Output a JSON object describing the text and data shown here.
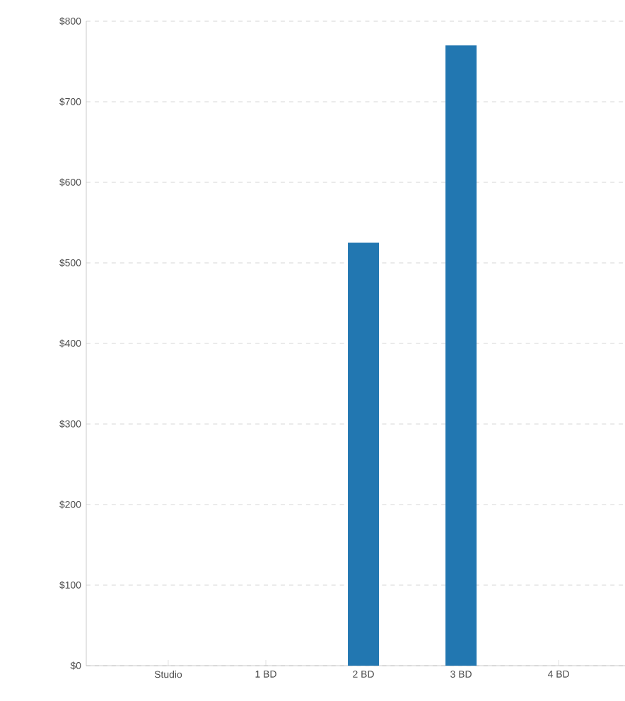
{
  "chart_data": {
    "type": "bar",
    "categories": [
      "Studio",
      "1 BD",
      "2 BD",
      "3 BD",
      "4 BD"
    ],
    "values": [
      0,
      0,
      525,
      770,
      0
    ],
    "color": "#2277b1",
    "ylim": [
      0,
      800
    ],
    "yticks": [
      {
        "value": 0,
        "label": "$0"
      },
      {
        "value": 100,
        "label": "$100"
      },
      {
        "value": 200,
        "label": "$200"
      },
      {
        "value": 300,
        "label": "$300"
      },
      {
        "value": 400,
        "label": "$400"
      },
      {
        "value": 500,
        "label": "$500"
      },
      {
        "value": 600,
        "label": "$600"
      },
      {
        "value": 700,
        "label": "$700"
      },
      {
        "value": 800,
        "label": "$800"
      }
    ],
    "grid": "y"
  }
}
